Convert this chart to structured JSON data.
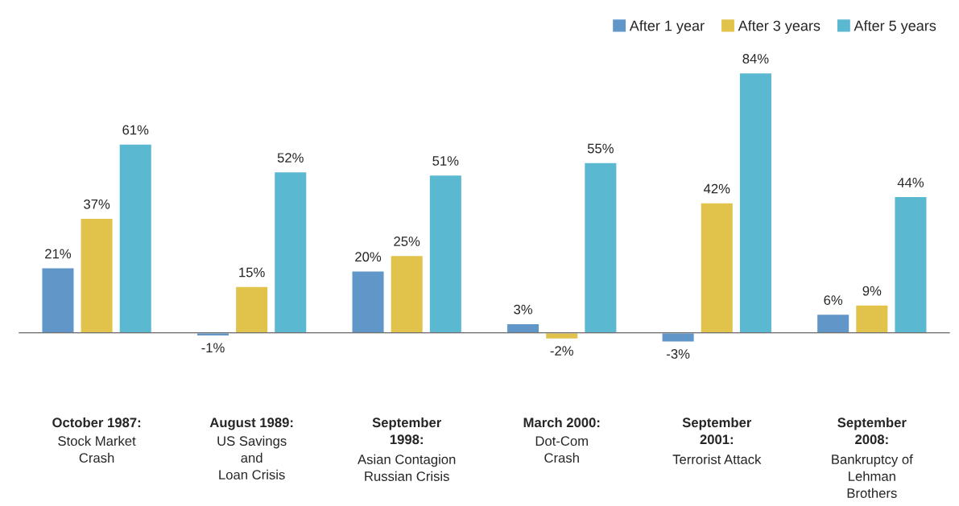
{
  "chart_data": {
    "type": "bar",
    "categories": [
      "October 1987:\nStock Market\nCrash",
      "August 1989:\nUS Savings\nand\nLoan Crisis",
      "September\n1998:\nAsian Contagion\nRussian Crisis",
      "March 2000:\nDot-Com\nCrash",
      "September\n2001:\nTerrorist Attack",
      "September\n2008:\nBankruptcy of\nLehman\nBrothers"
    ],
    "series": [
      {
        "name": "After 1 year",
        "color": "#6196c9",
        "values": [
          21,
          -1,
          20,
          3,
          -3,
          6
        ],
        "value_labels": [
          "21%",
          "-1%",
          "20%",
          "3%",
          "-3%",
          "6%"
        ]
      },
      {
        "name": "After 3 years",
        "color": "#e1c34b",
        "values": [
          37,
          15,
          25,
          -2,
          42,
          9
        ],
        "value_labels": [
          "37%",
          "15%",
          "25%",
          "-2%",
          "42%",
          "9%"
        ]
      },
      {
        "name": "After 5 years",
        "color": "#5bb8d1",
        "values": [
          61,
          52,
          51,
          55,
          84,
          44
        ],
        "value_labels": [
          "61%",
          "52%",
          "51%",
          "55%",
          "84%",
          "44%"
        ]
      }
    ],
    "legend": "top right"
  }
}
